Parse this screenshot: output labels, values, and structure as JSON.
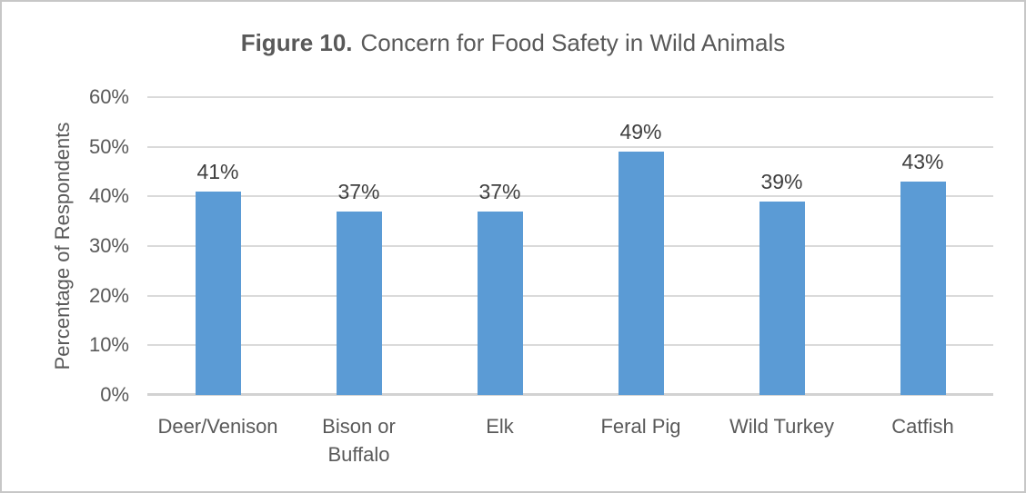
{
  "frame": {
    "border_color": "#c7c7c7",
    "background_color": "#ffffff"
  },
  "title": {
    "prefix": "Figure 10.",
    "text": "Concern for Food Safety in Wild Animals",
    "color": "#595959"
  },
  "chart_data": {
    "type": "bar",
    "title": "Figure 10. Concern for Food Safety in Wild Animals",
    "categories": [
      "Deer/Venison",
      "Bison or Buffalo",
      "Elk",
      "Feral Pig",
      "Wild Turkey",
      "Catfish"
    ],
    "values": [
      41,
      37,
      37,
      49,
      39,
      43
    ],
    "data_labels": [
      "41%",
      "37%",
      "37%",
      "49%",
      "39%",
      "43%"
    ],
    "xlabel": "",
    "ylabel": "Percentage of Respondents",
    "ylim": [
      0,
      60
    ],
    "ytick_step": 10,
    "ytick_labels": [
      "0%",
      "10%",
      "20%",
      "30%",
      "40%",
      "50%",
      "60%"
    ],
    "grid": true,
    "legend": false,
    "bar_color": "#5B9BD5",
    "gridline_color": "#dadada",
    "axis_line_color": "#d2d2d2",
    "tick_label_color": "#595959",
    "category_label_color": "#595959",
    "data_label_color": "#404040"
  }
}
